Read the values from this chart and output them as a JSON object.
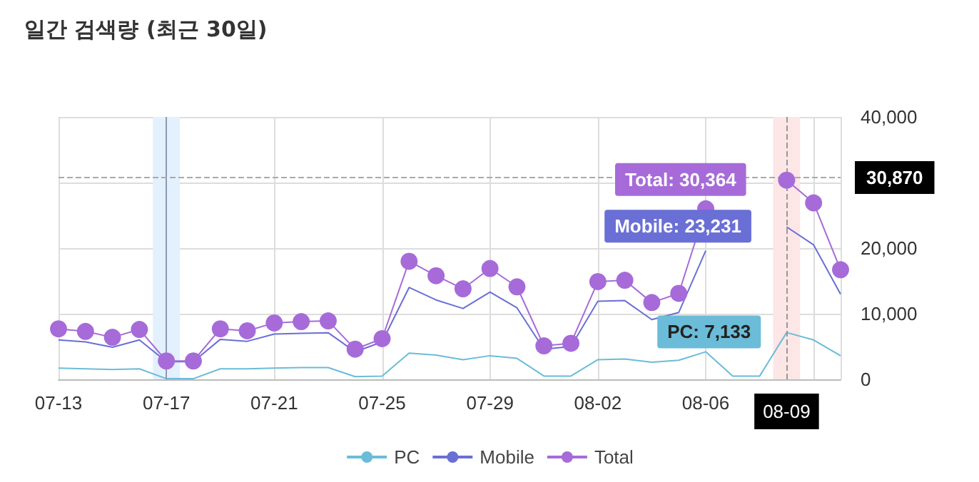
{
  "chart_data": {
    "type": "line",
    "title": "일간 검색량 (최근 30일)",
    "categories": [
      "07-13",
      null,
      null,
      null,
      "07-17",
      null,
      null,
      null,
      "07-21",
      null,
      null,
      null,
      "07-25",
      null,
      null,
      null,
      "07-29",
      null,
      null,
      null,
      "08-02",
      null,
      null,
      null,
      "08-06",
      null,
      null,
      "08-09",
      null,
      null
    ],
    "series": [
      {
        "name": "PC",
        "color": "#6bbcd8",
        "marker": "none",
        "values": [
          1700,
          1600,
          1500,
          1600,
          100,
          100,
          1600,
          1600,
          1700,
          1800,
          1800,
          400,
          500,
          4000,
          3700,
          3000,
          3600,
          3200,
          500,
          500,
          3000,
          3100,
          2600,
          2900,
          4200,
          500,
          500,
          7133,
          6000,
          3600
        ]
      },
      {
        "name": "Mobile",
        "color": "#6a6fd6",
        "marker": "none",
        "values": [
          6000,
          5700,
          4900,
          6000,
          2700,
          2700,
          6100,
          5800,
          6900,
          7000,
          7100,
          4200,
          5700,
          14000,
          12100,
          10800,
          13300,
          10900,
          4600,
          5000,
          11900,
          12000,
          9100,
          10200,
          19600,
          null,
          null,
          23231,
          20500,
          13000
        ]
      },
      {
        "name": "Total",
        "color": "#a66bd8",
        "marker": "circle",
        "values": [
          7700,
          7300,
          6400,
          7600,
          2800,
          2800,
          7700,
          7400,
          8600,
          8800,
          8900,
          4600,
          6200,
          18000,
          15800,
          13800,
          16900,
          14100,
          5100,
          5500,
          14900,
          15100,
          11700,
          13100,
          26000,
          null,
          null,
          30364,
          26900,
          16700
        ]
      }
    ],
    "ylim": [
      0,
      40000
    ],
    "yticks": [
      {
        "value": 0,
        "label": "0"
      },
      {
        "value": 10000,
        "label": "10,000"
      },
      {
        "value": 20000,
        "label": "20,000"
      },
      {
        "value": 30000,
        "label": null
      },
      {
        "value": 40000,
        "label": "40,000"
      }
    ],
    "grid": true,
    "legend": "bottom",
    "bands": [
      {
        "axis": "x",
        "from": "07-17",
        "to": "07-17",
        "color": "#e3f0fd"
      },
      {
        "axis": "x",
        "from": "08-09",
        "to": "08-09",
        "color": "#fde6e6"
      }
    ],
    "ref_lines": [
      {
        "axis": "x",
        "value": "07-17",
        "color": "#8a9bb0",
        "line_style": "solid"
      },
      {
        "axis": "x",
        "value": "08-09",
        "color": "#999999",
        "line_style": "dashed"
      },
      {
        "axis": "y",
        "value": 30870,
        "label": "30,870",
        "color": "#aaaaaa",
        "line_style": "dashed"
      }
    ],
    "annotations": [
      {
        "text": "Total: 30,364",
        "x": "08-09",
        "y": 30364
      },
      {
        "text": "Mobile: 23,231",
        "x": "08-09",
        "y": 23231
      },
      {
        "text": "PC: 7,133",
        "x": "08-09",
        "y": 7133
      }
    ]
  }
}
